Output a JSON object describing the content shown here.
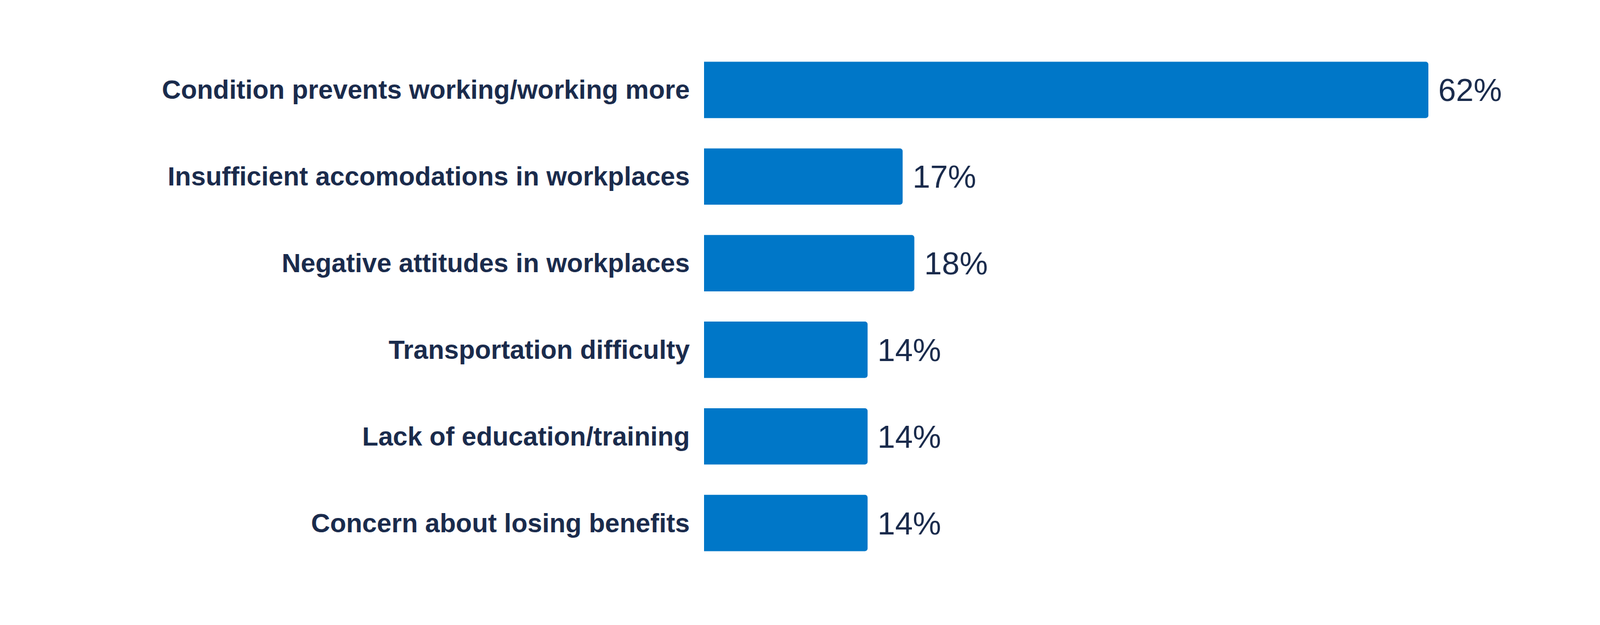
{
  "chart_data": {
    "type": "bar",
    "orientation": "horizontal",
    "categories": [
      "Condition prevents working/working more",
      "Insufficient accomodations in workplaces",
      "Negative attitudes in workplaces",
      "Transportation difficulty",
      "Lack of education/training",
      "Concern about losing benefits"
    ],
    "values": [
      62,
      17,
      18,
      14,
      14,
      14
    ],
    "value_labels": [
      "62%",
      "17%",
      "18%",
      "14%",
      "14%",
      "14%"
    ],
    "color": "#0077c8",
    "xlim": [
      0,
      62
    ],
    "data_labels": true,
    "tick_labels": "y",
    "grid": false
  }
}
